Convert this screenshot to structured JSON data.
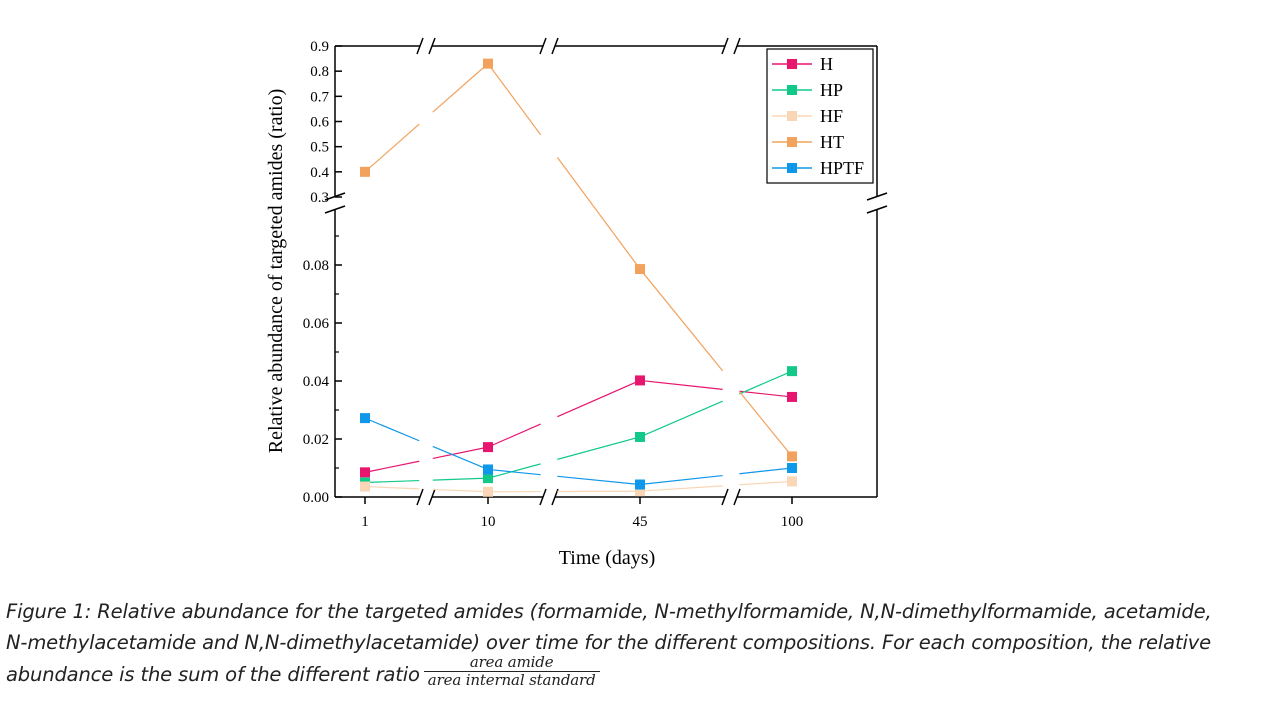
{
  "chart_data": {
    "type": "line",
    "xlabel": "Time (days)",
    "ylabel": "Relative abundance of targeted amides (ratio)",
    "categories": [
      "1",
      "10",
      "45",
      "100"
    ],
    "x_axis_break": "between each category",
    "y_axis": {
      "broken": true,
      "lower_segment": {
        "range": [
          0,
          0.1
        ],
        "ticks": [
          "0.00",
          "0.02",
          "0.04",
          "0.06",
          "0.08"
        ],
        "tick_values": [
          0,
          0.02,
          0.04,
          0.06,
          0.08
        ]
      },
      "upper_segment": {
        "range": [
          0.3,
          0.9
        ],
        "ticks": [
          "0.3",
          "0.4",
          "0.5",
          "0.6",
          "0.7",
          "0.8",
          "0.9"
        ],
        "tick_values": [
          0.3,
          0.4,
          0.5,
          0.6,
          0.7,
          0.8,
          0.9
        ]
      }
    },
    "grid": false,
    "legend_position": "top-right",
    "series": [
      {
        "name": "H",
        "color": "#e8156e",
        "values": [
          0.0085,
          0.0172,
          0.0402,
          0.0345
        ]
      },
      {
        "name": "HP",
        "color": "#12c98a",
        "values": [
          0.005,
          0.0065,
          0.0207,
          0.0434
        ]
      },
      {
        "name": "HF",
        "color": "#f9d7b6",
        "values": [
          0.0036,
          0.0018,
          0.002,
          0.0054
        ]
      },
      {
        "name": "HT",
        "color": "#f2a25d",
        "values": [
          0.4,
          0.83,
          0.0786,
          0.014
        ]
      },
      {
        "name": "HPTF",
        "color": "#0f97ea",
        "values": [
          0.0272,
          0.0095,
          0.0043,
          0.01
        ]
      }
    ]
  },
  "caption": {
    "line1": "Figure 1: Relative abundance for the targeted amides (formamide, N-methylformamide, N,N-dimethylformamide, acetamide,",
    "line2": "N-methylacetamide and N,N-dimethylacetamide) over time for the different compositions. For each composition, the relative",
    "line3": "abundance is the sum of the different ratio",
    "fraction_numerator": "area amide",
    "fraction_denominator": "area internal standard"
  }
}
